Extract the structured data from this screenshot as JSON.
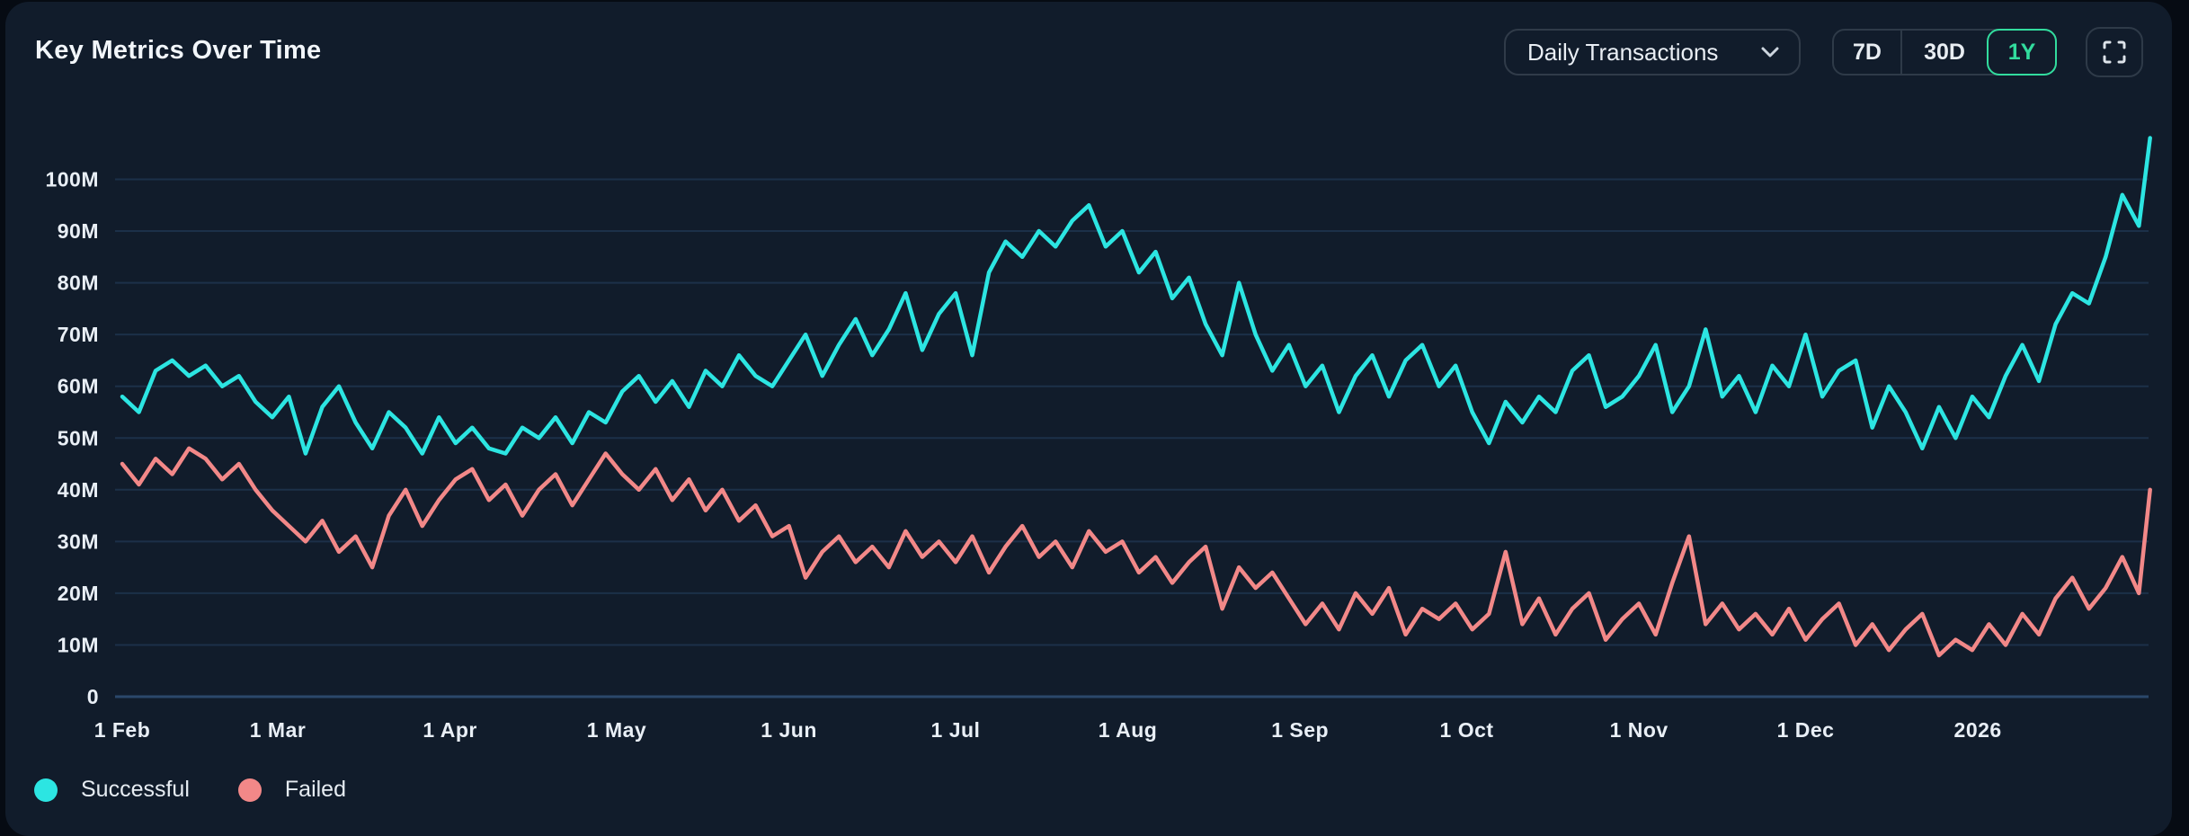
{
  "header": {
    "title": "Key Metrics Over Time"
  },
  "controls": {
    "metric_dropdown": {
      "label": "Daily Transactions",
      "icon": "chevron-down-icon"
    },
    "range_buttons": [
      {
        "label": "7D",
        "selected": false
      },
      {
        "label": "30D",
        "selected": false
      },
      {
        "label": "1Y",
        "selected": true
      }
    ],
    "fullscreen_button": {
      "icon": "fullscreen-icon"
    }
  },
  "colors": {
    "card_background": "#111c2b",
    "outer_background": "#060b13",
    "grid": "#1c3049",
    "zero_line": "#2b486b",
    "tick_text": "#e9eff6",
    "successful": "#2ce5e2",
    "failed": "#f28888",
    "accent_green": "#32dc9e",
    "control_border": "#2e3a48"
  },
  "legend": {
    "items": [
      {
        "label": "Successful",
        "color": "#2ce5e2"
      },
      {
        "label": "Failed",
        "color": "#f28888"
      }
    ]
  },
  "chart_data": {
    "type": "line",
    "title": "Key Metrics Over Time",
    "unit": "millions of transactions per day",
    "x_unit": "days since 1 Feb",
    "grid": "horizontal",
    "legend_position": "bottom-left",
    "ylim": [
      0,
      112
    ],
    "y_ticks": [
      {
        "label": "0",
        "value": 0
      },
      {
        "label": "10M",
        "value": 10
      },
      {
        "label": "20M",
        "value": 20
      },
      {
        "label": "30M",
        "value": 30
      },
      {
        "label": "40M",
        "value": 40
      },
      {
        "label": "50M",
        "value": 50
      },
      {
        "label": "60M",
        "value": 60
      },
      {
        "label": "70M",
        "value": 70
      },
      {
        "label": "80M",
        "value": 80
      },
      {
        "label": "90M",
        "value": 90
      },
      {
        "label": "100M",
        "value": 100
      }
    ],
    "x_ticks": [
      {
        "label": "1 Feb",
        "day": 0
      },
      {
        "label": "1 Mar",
        "day": 28
      },
      {
        "label": "1 Apr",
        "day": 59
      },
      {
        "label": "1 May",
        "day": 89
      },
      {
        "label": "1 Jun",
        "day": 120
      },
      {
        "label": "1 Jul",
        "day": 150
      },
      {
        "label": "1 Aug",
        "day": 181
      },
      {
        "label": "1 Sep",
        "day": 212
      },
      {
        "label": "1 Oct",
        "day": 242
      },
      {
        "label": "1 Nov",
        "day": 273
      },
      {
        "label": "1 Dec",
        "day": 303
      },
      {
        "label": "2026",
        "day": 334
      }
    ],
    "days": [
      0,
      3,
      6,
      9,
      12,
      15,
      18,
      21,
      24,
      27,
      30,
      33,
      36,
      39,
      42,
      45,
      48,
      51,
      54,
      57,
      60,
      63,
      66,
      69,
      72,
      75,
      78,
      81,
      84,
      87,
      90,
      93,
      96,
      99,
      102,
      105,
      108,
      111,
      114,
      117,
      120,
      123,
      126,
      129,
      132,
      135,
      138,
      141,
      144,
      147,
      150,
      153,
      156,
      159,
      162,
      165,
      168,
      171,
      174,
      177,
      180,
      183,
      186,
      189,
      192,
      195,
      198,
      201,
      204,
      207,
      210,
      213,
      216,
      219,
      222,
      225,
      228,
      231,
      234,
      237,
      240,
      243,
      246,
      249,
      252,
      255,
      258,
      261,
      264,
      267,
      270,
      273,
      276,
      279,
      282,
      285,
      288,
      291,
      294,
      297,
      300,
      303,
      306,
      309,
      312,
      315,
      318,
      321,
      324,
      327,
      330,
      333,
      336,
      339,
      342,
      345,
      348,
      351,
      354,
      357,
      360,
      363,
      365
    ],
    "series": [
      {
        "name": "Successful",
        "color": "#2ce5e2",
        "values": [
          58,
          55,
          63,
          65,
          62,
          64,
          60,
          62,
          57,
          54,
          58,
          47,
          56,
          60,
          53,
          48,
          55,
          52,
          47,
          54,
          49,
          52,
          48,
          47,
          52,
          50,
          54,
          49,
          55,
          53,
          59,
          62,
          57,
          61,
          56,
          63,
          60,
          66,
          62,
          60,
          65,
          70,
          62,
          68,
          73,
          66,
          71,
          78,
          67,
          74,
          78,
          66,
          82,
          88,
          85,
          90,
          87,
          92,
          95,
          87,
          90,
          82,
          86,
          77,
          81,
          72,
          66,
          80,
          70,
          63,
          68,
          60,
          64,
          55,
          62,
          66,
          58,
          65,
          68,
          60,
          64,
          55,
          49,
          57,
          53,
          58,
          55,
          63,
          66,
          56,
          58,
          62,
          68,
          55,
          60,
          71,
          58,
          62,
          55,
          64,
          60,
          70,
          58,
          63,
          65,
          52,
          60,
          55,
          48,
          56,
          50,
          58,
          54,
          62,
          68,
          61,
          72,
          78,
          76,
          85,
          97,
          91,
          108
        ]
      },
      {
        "name": "Failed",
        "color": "#f28888",
        "values": [
          45,
          41,
          46,
          43,
          48,
          46,
          42,
          45,
          40,
          36,
          33,
          30,
          34,
          28,
          31,
          25,
          35,
          40,
          33,
          38,
          42,
          44,
          38,
          41,
          35,
          40,
          43,
          37,
          42,
          47,
          43,
          40,
          44,
          38,
          42,
          36,
          40,
          34,
          37,
          31,
          33,
          23,
          28,
          31,
          26,
          29,
          25,
          32,
          27,
          30,
          26,
          31,
          24,
          29,
          33,
          27,
          30,
          25,
          32,
          28,
          30,
          24,
          27,
          22,
          26,
          29,
          17,
          25,
          21,
          24,
          19,
          14,
          18,
          13,
          20,
          16,
          21,
          12,
          17,
          15,
          18,
          13,
          16,
          28,
          14,
          19,
          12,
          17,
          20,
          11,
          15,
          18,
          12,
          22,
          31,
          14,
          18,
          13,
          16,
          12,
          17,
          11,
          15,
          18,
          10,
          14,
          9,
          13,
          16,
          8,
          11,
          9,
          14,
          10,
          16,
          12,
          19,
          23,
          17,
          21,
          27,
          20,
          40
        ]
      }
    ]
  }
}
